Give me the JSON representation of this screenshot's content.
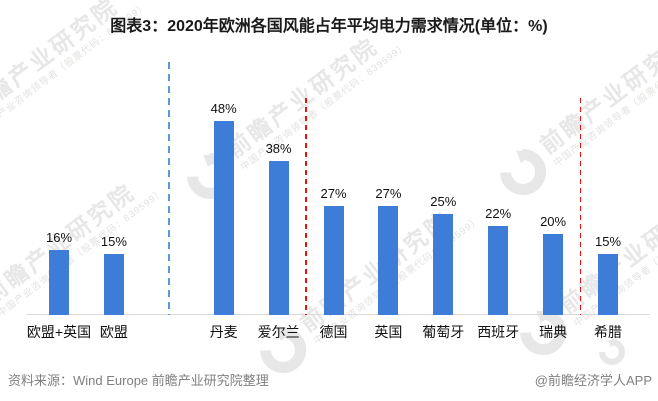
{
  "title": "图表3：2020年欧洲各国风能占年平均电力需求情况(单位：%)",
  "footer": {
    "source": "资料来源：Wind Europe 前瞻产业研究院整理",
    "credit": "@前瞻经济学人APP"
  },
  "watermark": {
    "brand": "前瞻产业研究院",
    "tagline": "中国产业咨询领导者（股票代码：839599）",
    "logo_icon": "qianzhan-swoosh-icon"
  },
  "colors": {
    "bar": "#3E7DD7",
    "blue_separator": "#5B9BD5",
    "red_separator": "#F00F0F",
    "axis_line": "#D9D9D9",
    "text": "#111111",
    "footer_text": "#7F7F7F",
    "watermark": "#E7E7E7"
  },
  "chart_data": {
    "type": "bar",
    "title": "2020年欧洲各国风能占年平均电力需求情况",
    "unit": "%",
    "categories": [
      "欧盟+英国",
      "欧盟",
      "丹麦",
      "爱尔兰",
      "德国",
      "英国",
      "葡萄牙",
      "西班牙",
      "瑞典",
      "希腊"
    ],
    "values": [
      16,
      15,
      48,
      38,
      27,
      27,
      25,
      22,
      20,
      15
    ],
    "value_suffix": "%",
    "xlabel": "",
    "ylabel": "",
    "ylim": [
      0,
      55
    ],
    "grid": false,
    "legend": "none",
    "gap_after": "欧盟",
    "separators": [
      {
        "after": "欧盟",
        "style": "dashed",
        "color_key": "blue_separator"
      },
      {
        "after": "爱尔兰",
        "style": "dashed",
        "color_key": "red_separator"
      },
      {
        "after": "瑞典",
        "style": "dashed",
        "color_key": "red_separator"
      }
    ]
  }
}
